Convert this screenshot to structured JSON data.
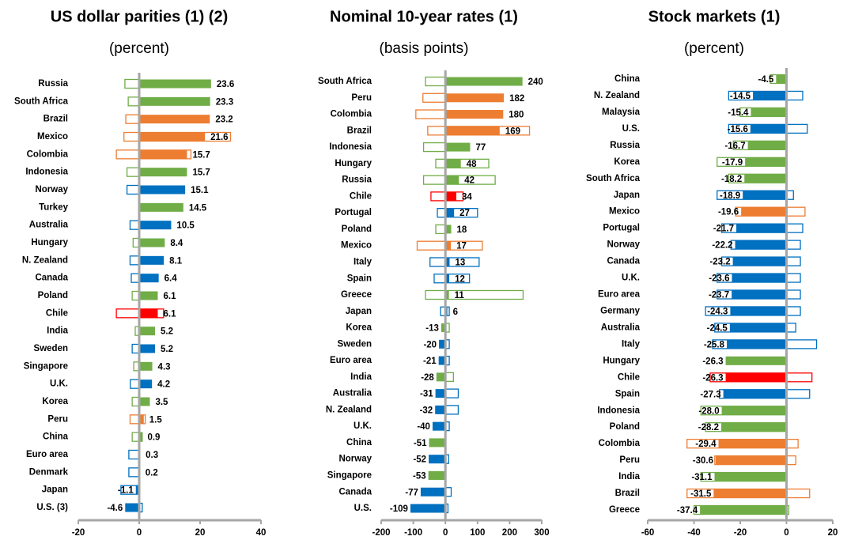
{
  "chart_data": [
    {
      "type": "bar",
      "orientation": "horizontal",
      "title": "US dollar parities (1) (2)",
      "subtitle": "(percent)",
      "categories": [
        "Russia",
        "South Africa",
        "Brazil",
        "Mexico",
        "Colombia",
        "Indonesia",
        "Norway",
        "Turkey",
        "Australia",
        "Hungary",
        "N. Zealand",
        "Canada",
        "Poland",
        "Chile",
        "India",
        "Sweden",
        "Singapore",
        "U.K.",
        "Korea",
        "Peru",
        "China",
        "Euro area",
        "Denmark",
        "Japan",
        "U.S. (3)"
      ],
      "values": [
        23.6,
        23.3,
        23.2,
        21.6,
        15.7,
        15.7,
        15.1,
        14.5,
        10.5,
        8.4,
        8.1,
        6.4,
        6.1,
        6.1,
        5.2,
        5.2,
        4.3,
        4.2,
        3.5,
        1.5,
        0.9,
        0.3,
        0.2,
        -1.1,
        -4.6
      ],
      "colors": [
        "#70ad47",
        "#70ad47",
        "#ed7d31",
        "#ed7d31",
        "#ed7d31",
        "#70ad47",
        "#0070c0",
        "#70ad47",
        "#0070c0",
        "#70ad47",
        "#0070c0",
        "#0070c0",
        "#70ad47",
        "#ff0000",
        "#70ad47",
        "#0070c0",
        "#70ad47",
        "#0070c0",
        "#70ad47",
        "#ed7d31",
        "#70ad47",
        "#0070c0",
        "#0070c0",
        "#0070c0",
        "#0070c0"
      ],
      "outline": [
        [
          -4.7,
          0
        ],
        [
          -3.6,
          0
        ],
        [
          -4.4,
          0
        ],
        [
          -5,
          30
        ],
        [
          -7.5,
          17
        ],
        [
          -4,
          0
        ],
        [
          -4,
          0
        ],
        null,
        [
          -3,
          0
        ],
        [
          -2,
          0
        ],
        [
          -3,
          0
        ],
        [
          -2.6,
          0
        ],
        [
          -2.3,
          0
        ],
        [
          -7.5,
          8
        ],
        [
          -1.3,
          0
        ],
        [
          -2.3,
          0
        ],
        [
          -1.8,
          0
        ],
        [
          -2.9,
          0
        ],
        [
          -2.3,
          0
        ],
        [
          -3,
          2
        ],
        [
          -2.3,
          1
        ],
        [
          -3.4,
          0
        ],
        [
          -3.4,
          0
        ],
        [
          -6,
          0
        ],
        [
          0,
          1
        ]
      ],
      "xlim": [
        -20,
        40
      ],
      "xticks": [
        -20,
        0,
        20,
        40
      ]
    },
    {
      "type": "bar",
      "orientation": "horizontal",
      "title": "Nominal 10-year rates (1)",
      "subtitle": "(basis points)",
      "categories": [
        "South Africa",
        "Peru",
        "Colombia",
        "Brazil",
        "Indonesia",
        "Hungary",
        "Russia",
        "Chile",
        "Portugal",
        "Poland",
        "Mexico",
        "Italy",
        "Spain",
        "Greece",
        "Japan",
        "Korea",
        "Sweden",
        "Euro area",
        "India",
        "Australia",
        "N. Zealand",
        "U.K.",
        "China",
        "Norway",
        "Singapore",
        "Canada",
        "U.S."
      ],
      "values": [
        240,
        182,
        180,
        169,
        77,
        48,
        42,
        34,
        27,
        18,
        17,
        13,
        12,
        11,
        6,
        -13,
        -20,
        -21,
        -28,
        -31,
        -32,
        -40,
        -51,
        -52,
        -53,
        -77,
        -109
      ],
      "colors": [
        "#70ad47",
        "#ed7d31",
        "#ed7d31",
        "#ed7d31",
        "#70ad47",
        "#70ad47",
        "#70ad47",
        "#ff0000",
        "#0070c0",
        "#70ad47",
        "#ed7d31",
        "#0070c0",
        "#0070c0",
        "#70ad47",
        "#0070c0",
        "#70ad47",
        "#0070c0",
        "#0070c0",
        "#70ad47",
        "#0070c0",
        "#0070c0",
        "#0070c0",
        "#70ad47",
        "#0070c0",
        "#70ad47",
        "#0070c0",
        "#0070c0"
      ],
      "outline": [
        [
          -62,
          0
        ],
        [
          -70,
          0
        ],
        [
          -92,
          0
        ],
        [
          -55,
          262
        ],
        [
          -68,
          0
        ],
        [
          -30,
          135
        ],
        [
          -68,
          155
        ],
        [
          -45,
          55
        ],
        [
          -25,
          100
        ],
        [
          -30,
          0
        ],
        [
          -88,
          115
        ],
        [
          -48,
          105
        ],
        [
          -35,
          75
        ],
        [
          -62,
          242
        ],
        [
          -15,
          12
        ],
        [
          0,
          12
        ],
        [
          0,
          12
        ],
        [
          0,
          12
        ],
        [
          0,
          25
        ],
        [
          0,
          40
        ],
        [
          0,
          40
        ],
        [
          0,
          12
        ],
        null,
        [
          0,
          10
        ],
        null,
        [
          0,
          18
        ],
        [
          0,
          8
        ]
      ],
      "xlim": [
        -200,
        300
      ],
      "xticks": [
        -200,
        -100,
        0,
        100,
        200,
        300
      ]
    },
    {
      "type": "bar",
      "orientation": "horizontal",
      "title": "Stock markets (1)",
      "subtitle": "(percent)",
      "categories": [
        "China",
        "N. Zealand",
        "Malaysia",
        "U.S.",
        "Russia",
        "Korea",
        "South Africa",
        "Japan",
        "Mexico",
        "Portugal",
        "Norway",
        "Canada",
        "U.K.",
        "Euro area",
        "Germany",
        "Australia",
        "Italy",
        "Hungary",
        "Chile",
        "Spain",
        "Indonesia",
        "Poland",
        "Colombia",
        "Peru",
        "India",
        "Brazil",
        "Greece"
      ],
      "values": [
        -4.5,
        -14.5,
        -15.4,
        -15.6,
        -16.7,
        -17.9,
        -18.2,
        -18.9,
        -19.6,
        -21.7,
        -22.2,
        -23.2,
        -23.6,
        -23.7,
        -24.3,
        -24.5,
        -25.8,
        -26.3,
        -26.3,
        -27.3,
        -28,
        -28.2,
        -29.4,
        -30.6,
        -31.1,
        -31.5,
        -37.4
      ],
      "value_labels": [
        "-4.5",
        "-14.5",
        "-15.4",
        "-15.6",
        "-16.7",
        "-17.9",
        "-18.2",
        "-18.9",
        "-19.6",
        "-21.7",
        "-22.2",
        "-23.2",
        "-23.6",
        "-23.7",
        "-24.3",
        "-24.5",
        "-25.8",
        "-26.3",
        "-26.3",
        "-27.3",
        "-28.0",
        "-28.2",
        "-29.4",
        "-30.6",
        "-31.1",
        "-31.5",
        "-37.4"
      ],
      "colors": [
        "#70ad47",
        "#0070c0",
        "#70ad47",
        "#0070c0",
        "#70ad47",
        "#70ad47",
        "#70ad47",
        "#0070c0",
        "#ed7d31",
        "#0070c0",
        "#0070c0",
        "#0070c0",
        "#0070c0",
        "#0070c0",
        "#0070c0",
        "#0070c0",
        "#0070c0",
        "#70ad47",
        "#ff0000",
        "#0070c0",
        "#70ad47",
        "#70ad47",
        "#ed7d31",
        "#ed7d31",
        "#70ad47",
        "#ed7d31",
        "#70ad47"
      ],
      "outline": [
        [
          -7,
          0
        ],
        [
          -25,
          7
        ],
        [
          -20,
          0
        ],
        [
          -25,
          9
        ],
        [
          -23,
          0
        ],
        [
          -30,
          0
        ],
        [
          -25,
          0
        ],
        [
          -30,
          3
        ],
        [
          -22,
          8
        ],
        [
          -28,
          7
        ],
        [
          -24,
          6
        ],
        [
          -28,
          6
        ],
        [
          -30,
          6
        ],
        [
          -30,
          6
        ],
        [
          -35,
          6
        ],
        [
          -31,
          4
        ],
        [
          -32,
          13
        ],
        null,
        [
          -33,
          11
        ],
        [
          -29,
          10
        ],
        [
          -37,
          0
        ],
        [
          -35,
          0
        ],
        [
          -43,
          5
        ],
        [
          -31,
          4
        ],
        [
          -37,
          0
        ],
        [
          -43,
          10
        ],
        [
          -40,
          1
        ]
      ],
      "xlim": [
        -60,
        20
      ],
      "xticks": [
        -60,
        -40,
        -20,
        0,
        20
      ]
    }
  ]
}
